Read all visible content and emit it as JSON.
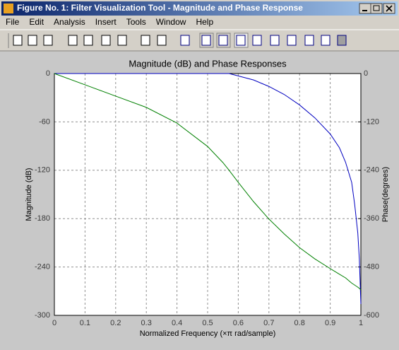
{
  "window": {
    "title": "Figure No. 1: Filter Visualization Tool - Magnitude and Phase Response",
    "menu": [
      "File",
      "Edit",
      "Analysis",
      "Insert",
      "Tools",
      "Window",
      "Help"
    ]
  },
  "chart_data": {
    "type": "line",
    "title": "Magnitude (dB) and Phase Responses",
    "xlabel": "Normalized Frequency  (×π rad/sample)",
    "ylabel": "Magnitude (dB)",
    "y2label": "Phase(degrees)",
    "x": [
      0,
      0.1,
      0.2,
      0.3,
      0.4,
      0.5,
      0.55,
      0.57,
      0.6,
      0.65,
      0.7,
      0.75,
      0.8,
      0.85,
      0.9,
      0.93,
      0.95,
      0.97,
      0.98,
      0.99,
      0.995,
      1
    ],
    "series": [
      {
        "color": "#0000c0",
        "values": [
          0,
          0,
          0,
          0,
          0,
          0,
          0,
          0,
          -3,
          -8,
          -16,
          -26,
          -39,
          -55,
          -75,
          -92,
          -110,
          -135,
          -163,
          -198,
          -230,
          -286
        ]
      },
      {
        "color": "#008000",
        "axis": "y2",
        "values": [
          0,
          -28,
          -56,
          -84,
          -123,
          -181,
          -221,
          -240,
          -270,
          -318,
          -361,
          -398,
          -432,
          -460,
          -484,
          -498,
          -507,
          -520,
          -525,
          -530,
          -533,
          -537
        ]
      }
    ],
    "xlim": [
      0,
      1
    ],
    "xticks": [
      0,
      0.1,
      0.2,
      0.3,
      0.4,
      0.5,
      0.6,
      0.7,
      0.8,
      0.9,
      1
    ],
    "ylim": [
      -300,
      0
    ],
    "yticks": [
      -300,
      -240,
      -180,
      -120,
      -60,
      0
    ],
    "y2lim": [
      -600,
      0
    ],
    "y2ticks": [
      -600,
      -480,
      -360,
      -240,
      -120,
      0
    ],
    "grid": true
  }
}
